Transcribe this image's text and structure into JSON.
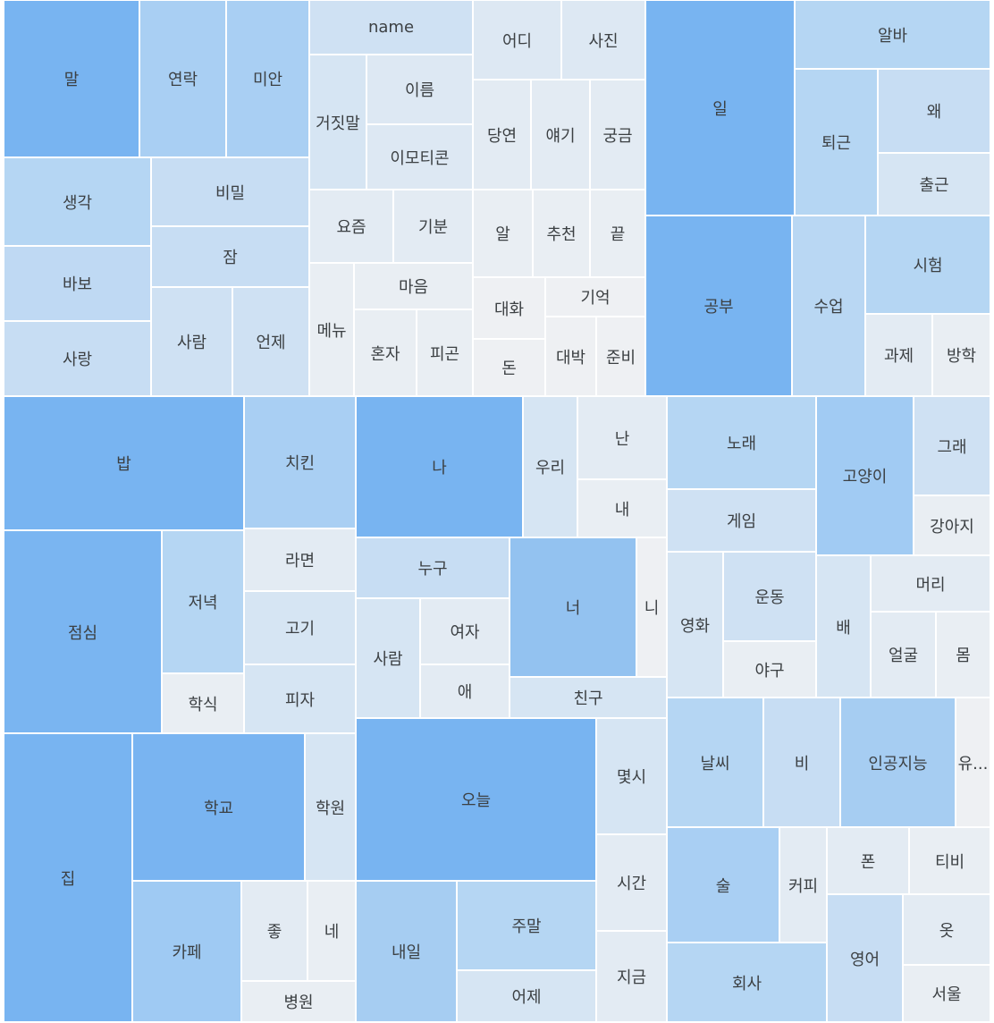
{
  "tiles": [
    "말",
    "연락",
    "미안",
    "생각",
    "비밀",
    "바보",
    "잠",
    "사랑",
    "사람",
    "언제",
    "name",
    "어디",
    "사진",
    "거짓말",
    "이름",
    "이모티콘",
    "당연",
    "얘기",
    "궁금",
    "요즘",
    "기분",
    "알",
    "추천",
    "끝",
    "메뉴",
    "마음",
    "혼자",
    "피곤",
    "대화",
    "기억",
    "돈",
    "대박",
    "준비",
    "일",
    "알바",
    "퇴근",
    "왜",
    "출근",
    "공부",
    "수업",
    "시험",
    "과제",
    "방학",
    "밥",
    "치킨",
    "점심",
    "저녁",
    "라면",
    "고기",
    "학식",
    "피자",
    "집",
    "학교",
    "학원",
    "카페",
    "좋",
    "네",
    "병원",
    "나",
    "우리",
    "난",
    "내",
    "누구",
    "너",
    "니",
    "사람",
    "여자",
    "애",
    "친구",
    "오늘",
    "몇시",
    "시간",
    "내일",
    "주말",
    "어제",
    "지금",
    "노래",
    "고양이",
    "그래",
    "게임",
    "강아지",
    "영화",
    "운동",
    "야구",
    "배",
    "머리",
    "얼굴",
    "몸",
    "날씨",
    "비",
    "인공지능",
    "유...",
    "술",
    "커피",
    "폰",
    "티비",
    "회사",
    "영어",
    "옷",
    "서울"
  ]
}
